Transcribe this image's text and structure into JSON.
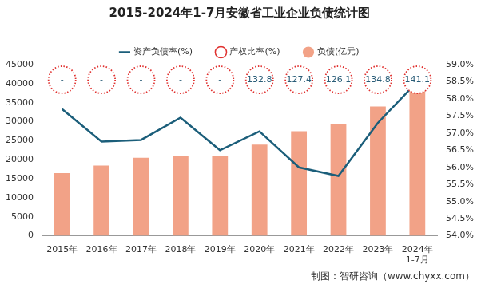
{
  "chart_data": {
    "type": "bar",
    "title": "2015-2024年1-7月安徽省工业企业负债统计图",
    "source": "制图：智研咨询（www.chyxx.com）",
    "categories": [
      "2015年",
      "2016年",
      "2017年",
      "2018年",
      "2019年",
      "2020年",
      "2021年",
      "2022年",
      "2023年",
      "2024年\n1-7月"
    ],
    "series": [
      {
        "name": "负债(亿元)",
        "type": "bar",
        "color": "#f2a287",
        "values": [
          16500,
          18500,
          20500,
          21000,
          21000,
          24000,
          27500,
          29500,
          34000,
          38500
        ]
      },
      {
        "name": "产权比率(%)",
        "type": "text",
        "color": "#e0312f",
        "marker": "circle",
        "line_style": "dotted",
        "values": [
          null,
          null,
          null,
          null,
          null,
          132.8,
          127.4,
          126.1,
          134.8,
          141.1
        ],
        "value_labels": [
          "-",
          "-",
          "-",
          "-",
          "-",
          "132.8",
          "127.4",
          "126.1",
          "134.8",
          "141.1"
        ]
      },
      {
        "name": "资产负债率(%)",
        "type": "line",
        "axis": "y2",
        "color": "#1b5e7a",
        "values": [
          57.7,
          56.75,
          56.8,
          57.45,
          56.5,
          57.05,
          56.0,
          55.75,
          57.3,
          58.5
        ]
      }
    ],
    "ylim": [
      0,
      45000
    ],
    "yticks": [
      0,
      5000,
      10000,
      15000,
      20000,
      25000,
      30000,
      35000,
      40000,
      45000
    ],
    "y2lim": [
      54,
      59
    ],
    "y2ticks": [
      {
        "value": 54,
        "label": "54.0%"
      },
      {
        "value": 54.5,
        "label": "54.5%"
      },
      {
        "value": 55,
        "label": "55.0%"
      },
      {
        "value": 55.5,
        "label": "55.5%"
      },
      {
        "value": 56,
        "label": "56.0%"
      },
      {
        "value": 56.5,
        "label": "56.5%"
      },
      {
        "value": 57,
        "label": "57.0%"
      },
      {
        "value": 57.5,
        "label": "57.5%"
      },
      {
        "value": 58,
        "label": "58.0%"
      },
      {
        "value": 58.5,
        "label": "58.5%"
      },
      {
        "value": 59,
        "label": "59.0%"
      }
    ],
    "grid": false,
    "legend": "top"
  }
}
